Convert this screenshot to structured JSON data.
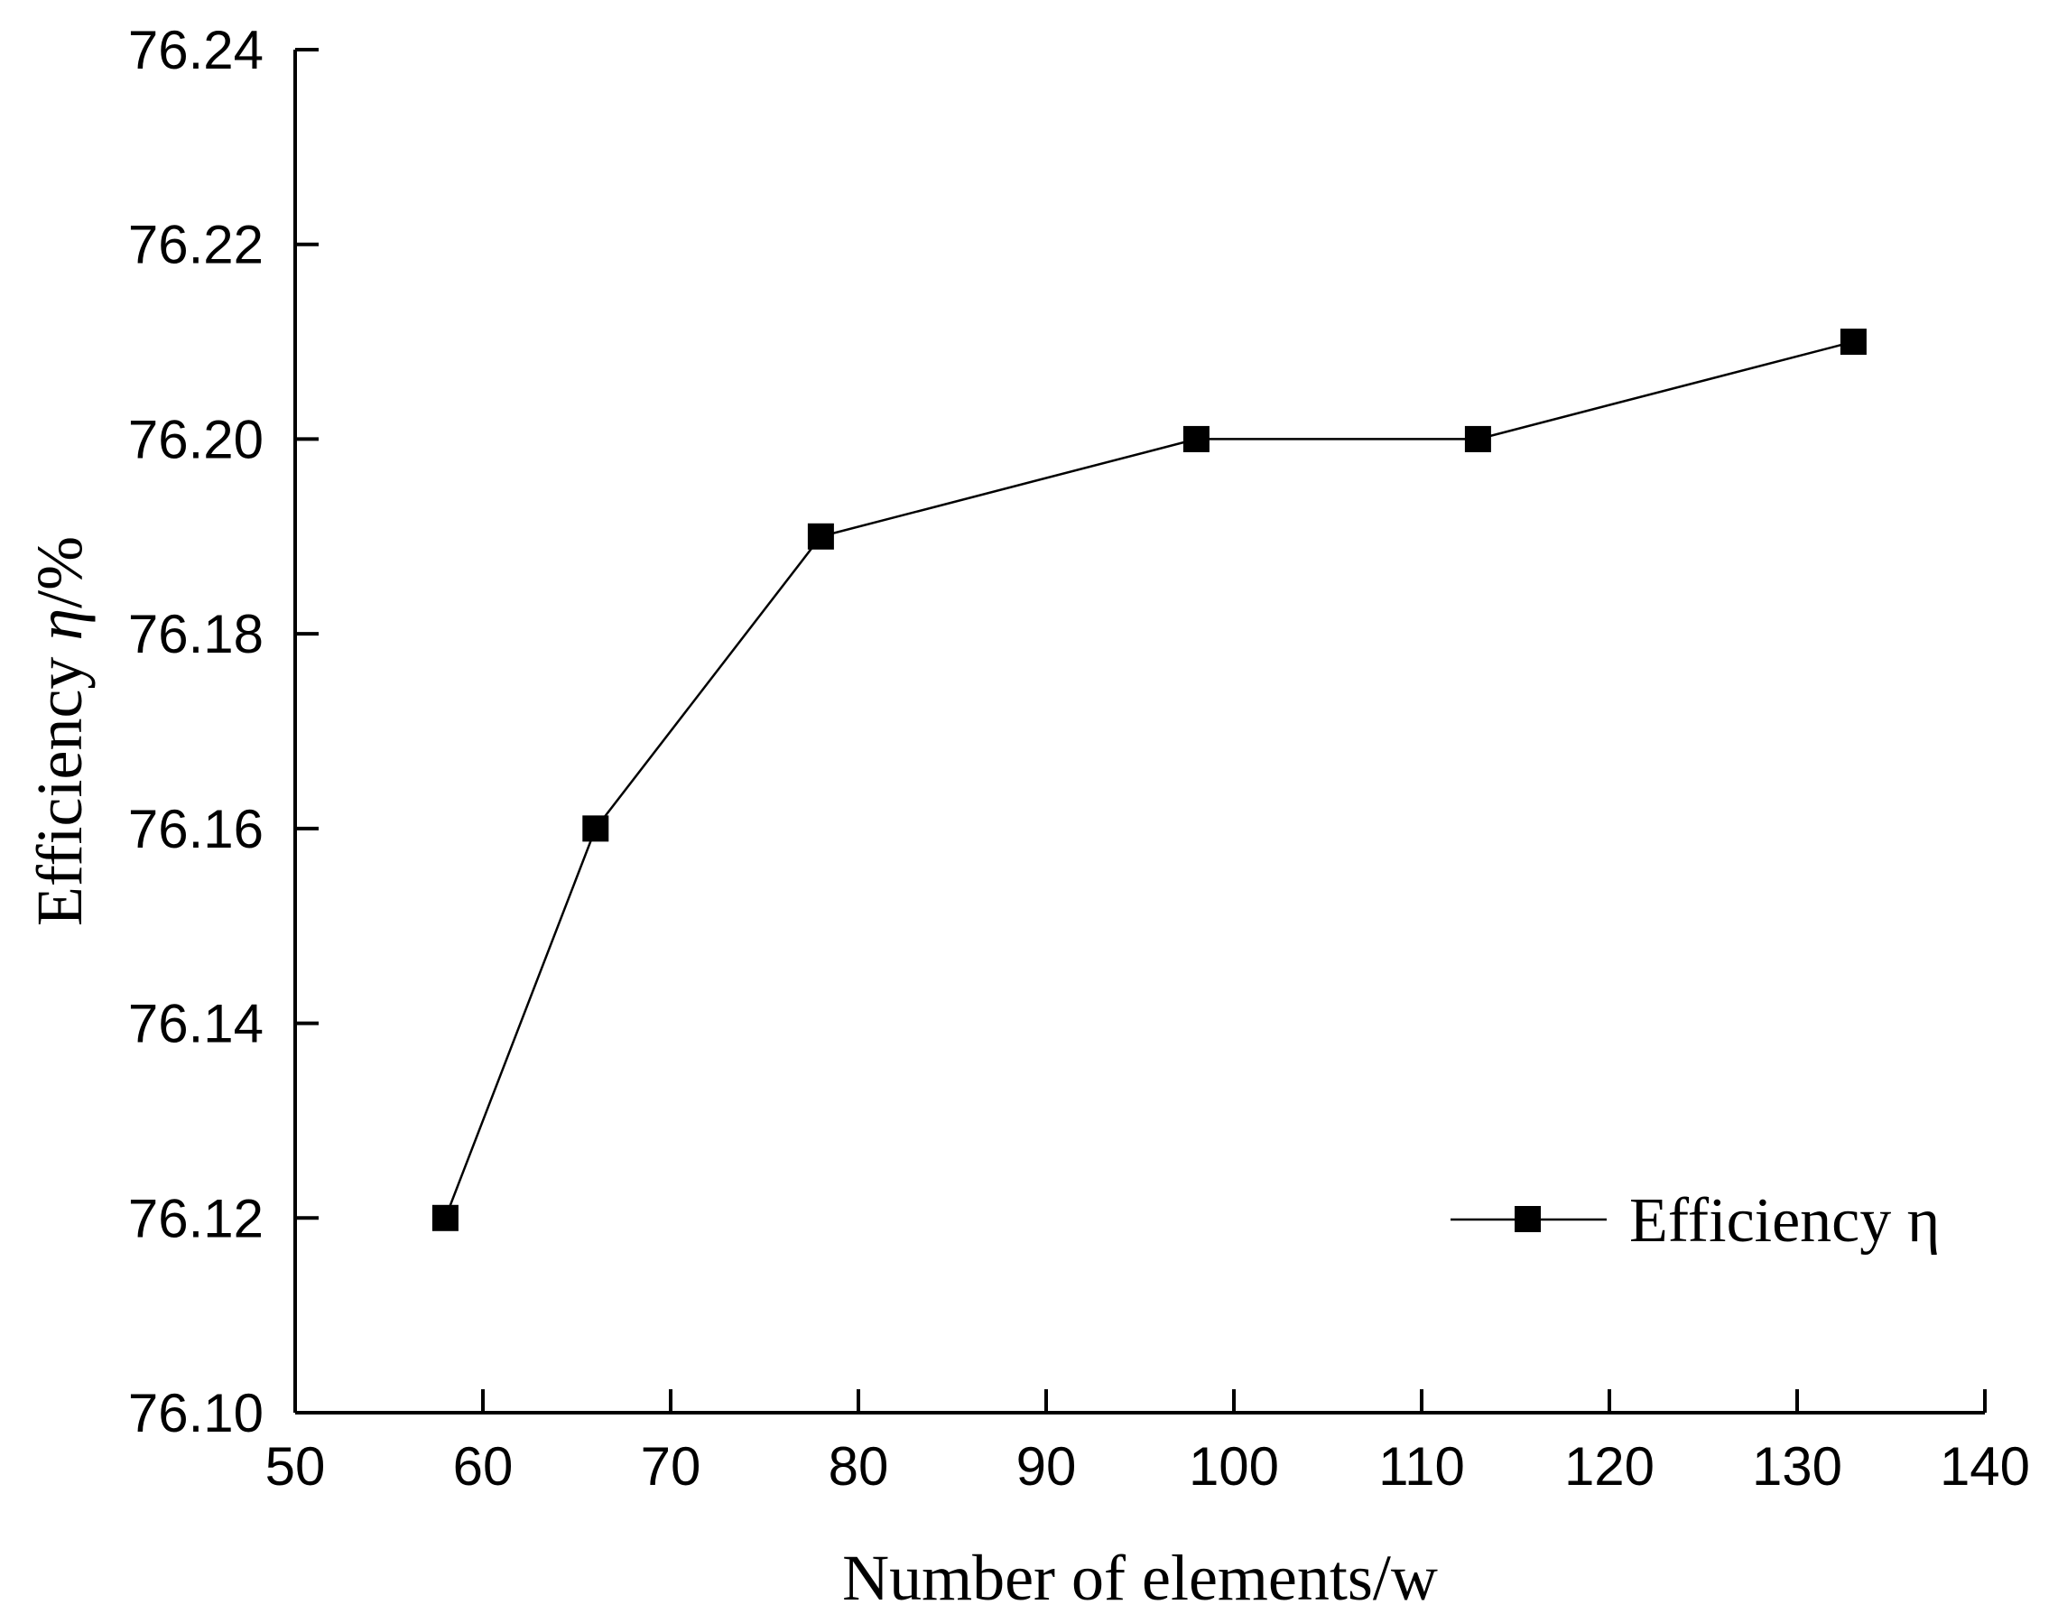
{
  "chart_data": {
    "type": "line",
    "title": "",
    "xlabel": "Number of elements/w",
    "ylabel": {
      "prefix": "Efficiency ",
      "symbol": "η",
      "suffix": "/%"
    },
    "xlim": [
      50,
      140
    ],
    "ylim": [
      76.1,
      76.24
    ],
    "xticks": [
      "50",
      "60",
      "70",
      "80",
      "90",
      "100",
      "110",
      "120",
      "130",
      "140"
    ],
    "yticks": [
      "76.10",
      "76.12",
      "76.14",
      "76.16",
      "76.18",
      "76.20",
      "76.22",
      "76.24"
    ],
    "grid": false,
    "legend_position": "bottom-right",
    "series": [
      {
        "name": "Efficiency η",
        "marker": "square",
        "color": "#000000",
        "x": [
          58,
          66,
          78,
          98,
          113,
          133
        ],
        "y": [
          76.12,
          76.16,
          76.19,
          76.2,
          76.2,
          76.21
        ]
      }
    ]
  }
}
